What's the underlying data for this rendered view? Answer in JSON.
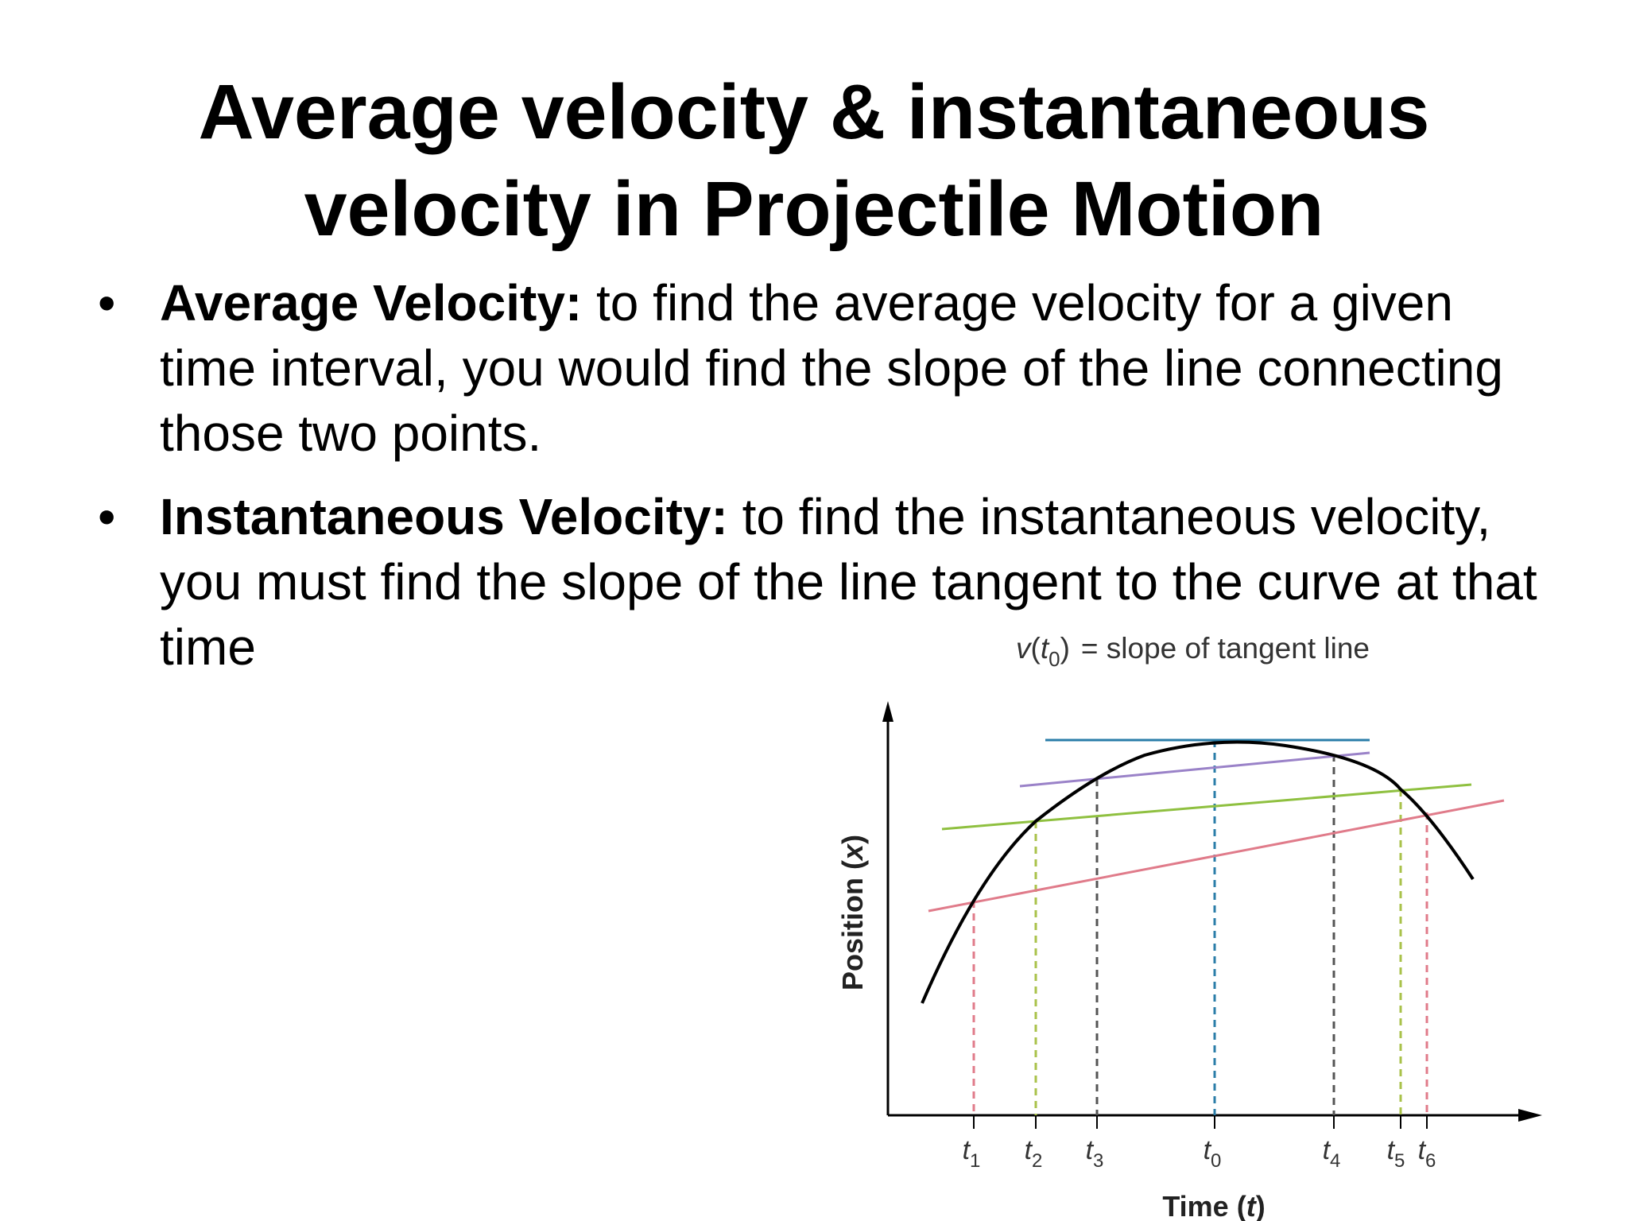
{
  "slide": {
    "title_lines": [
      "Average velocity & instantaneous",
      "velocity in Projectile Motion"
    ],
    "bullets": [
      {
        "marker": "•",
        "term": "Average Velocity:",
        "text": "to find the average velocity for a given time interval, you would find the slope of the line connecting those two points."
      },
      {
        "marker": "•",
        "term": "Instantaneous Velocity:",
        "text": "to find the instantaneous velocity, you must find the slope of the line tangent to the curve at that time"
      }
    ]
  },
  "diagram": {
    "equation": {
      "v": "v",
      "paren_open": "(",
      "t": "t",
      "sub": "0",
      "paren_close": ")",
      "rest": "= slope of tangent line"
    },
    "y_axis": {
      "label": "Position ",
      "var": "x",
      "open": "(",
      "close": ")"
    },
    "x_axis": {
      "label": "Time ",
      "var": "t",
      "open": "(",
      "close": ")"
    },
    "time_markers": [
      {
        "letter": "t",
        "sub": "1",
        "color": "#e07b8a"
      },
      {
        "letter": "t",
        "sub": "2",
        "color": "#a9c24a"
      },
      {
        "letter": "t",
        "sub": "3",
        "color": "#555555"
      },
      {
        "letter": "t",
        "sub": "0",
        "color": "#2a7da8"
      },
      {
        "letter": "t",
        "sub": "4",
        "color": "#555555"
      },
      {
        "letter": "t",
        "sub": "5",
        "color": "#a9c24a"
      },
      {
        "letter": "t",
        "sub": "6",
        "color": "#e07b8a"
      }
    ],
    "lines": [
      {
        "name": "secant t1-t6",
        "color": "#e07b8a"
      },
      {
        "name": "secant t2-t5",
        "color": "#8fc040"
      },
      {
        "name": "secant t3-t4",
        "color": "#9a82c8"
      },
      {
        "name": "tangent at t0",
        "color": "#2a7da8"
      }
    ],
    "curve_color": "#000000"
  }
}
